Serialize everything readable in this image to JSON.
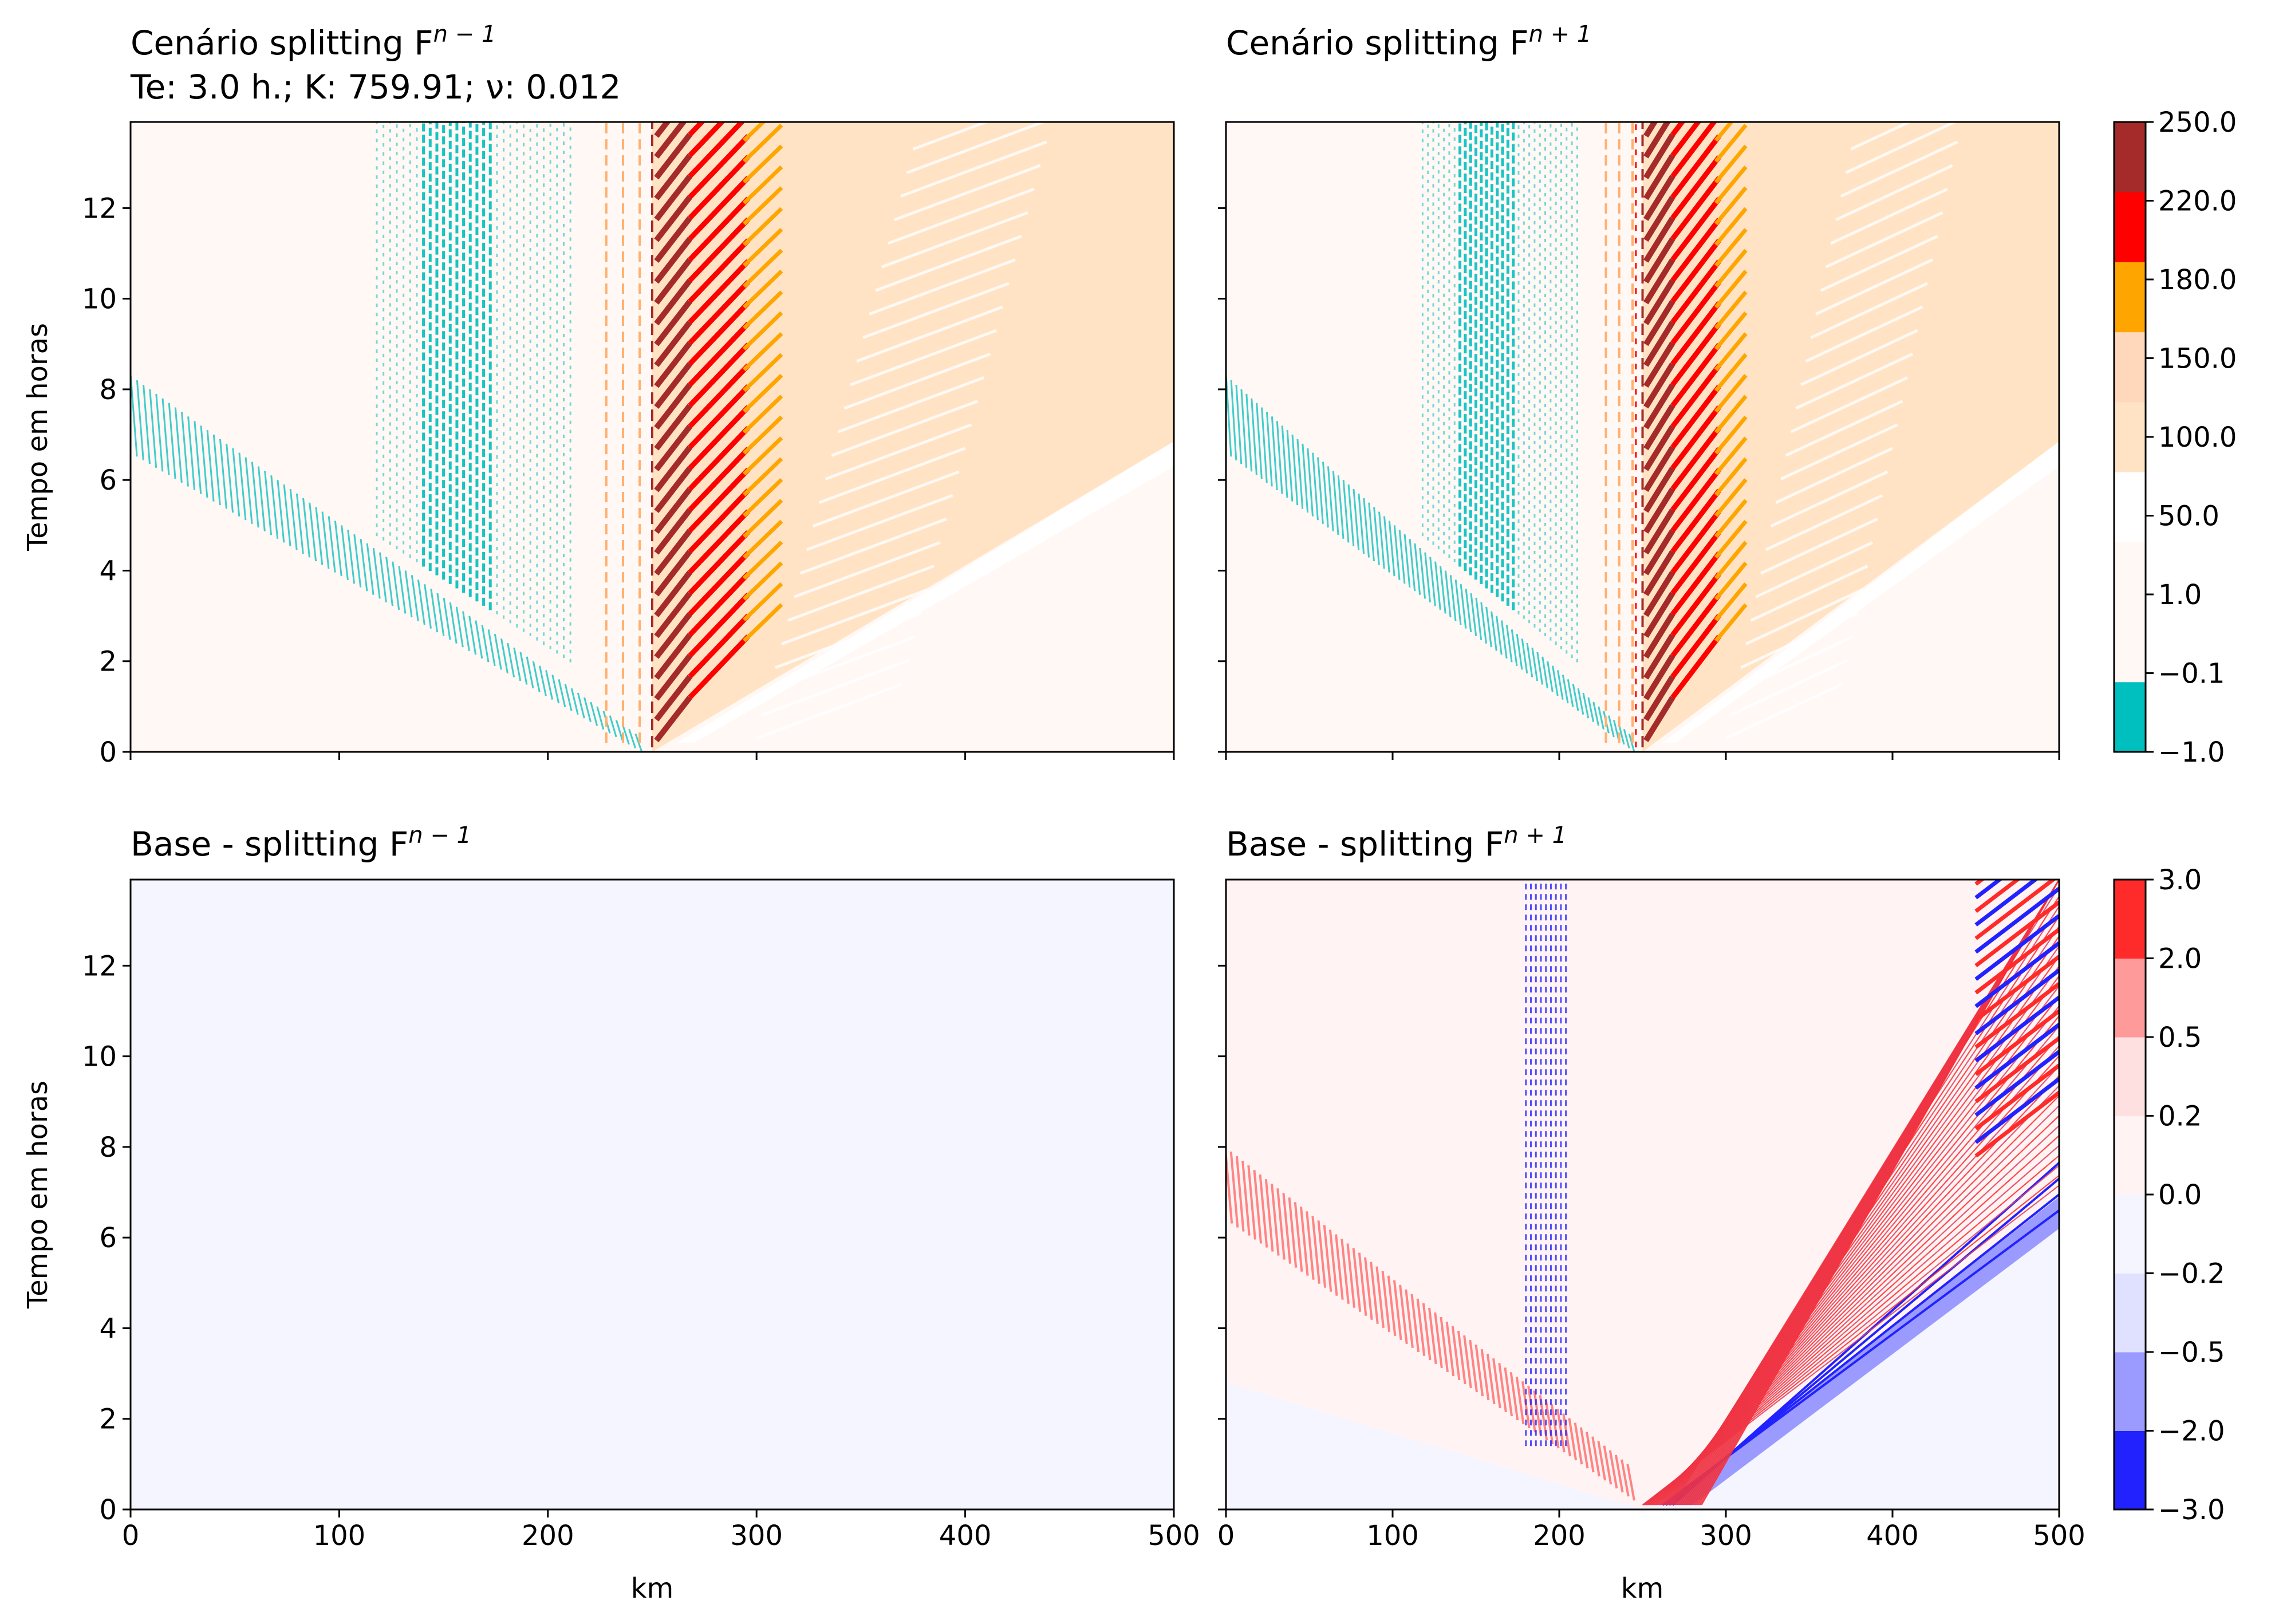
{
  "colors": {
    "teal": "#00bfbf",
    "peach": "#ffe3c4",
    "orange": "#ffa500",
    "red": "#ff0000",
    "darkred": "#a52a2a",
    "paleblue": "#f5f5ff",
    "blue": "#0000ff"
  },
  "chart_data": [
    {
      "type": "heatmap",
      "panel": "top-left",
      "title_line1": "Cenário splitting F",
      "title_sup": "n − 1",
      "title_line2": "Te: 3.0 h.; K: 759.91; ν: 0.012",
      "xlabel": "",
      "ylabel": "Tempo em horas",
      "xlim": [
        0,
        500
      ],
      "ylim": [
        0,
        13.9
      ],
      "xticks": [
        0,
        100,
        200,
        300,
        400,
        500
      ],
      "yticks": [
        "0",
        "2",
        "4",
        "6",
        "8",
        "10",
        "12"
      ],
      "show_xticklabels": false,
      "colorbar": "top"
    },
    {
      "type": "heatmap",
      "panel": "top-right",
      "title_line1": "Cenário splitting F",
      "title_sup": "n + 1",
      "xlabel": "",
      "ylabel": "",
      "xlim": [
        0,
        500
      ],
      "ylim": [
        0,
        13.9
      ],
      "colorbar": "top"
    },
    {
      "type": "heatmap",
      "panel": "bottom-left",
      "title_line1": "Base - splitting F",
      "title_sup": "n − 1",
      "xlabel": "km",
      "ylabel": "Tempo em horas",
      "xlim": [
        0,
        500
      ],
      "ylim": [
        0,
        13.9
      ],
      "xticks": [
        "0",
        "100",
        "200",
        "300",
        "400",
        "500"
      ],
      "yticks": [
        "0",
        "2",
        "4",
        "6",
        "8",
        "10",
        "12"
      ],
      "colorbar": "bottom"
    },
    {
      "type": "heatmap",
      "panel": "bottom-right",
      "title_line1": "Base - splitting F",
      "title_sup": "n + 1",
      "xlabel": "km",
      "ylabel": "",
      "xlim": [
        0,
        500
      ],
      "ylim": [
        0,
        13.9
      ],
      "xticks": [
        "0",
        "100",
        "200",
        "300",
        "400",
        "500"
      ],
      "colorbar": "bottom"
    }
  ],
  "colorbar_top": {
    "levels": [
      "−1.0",
      "−0.1",
      "1.0",
      "50.0",
      "100.0",
      "150.0",
      "180.0",
      "220.0",
      "250.0"
    ],
    "colors": [
      "#00bfbf",
      "#fff8f5",
      "#fff8f5",
      "#ffffff",
      "#ffe3c4",
      "#ffd8bc",
      "#ffa500",
      "#ff0000",
      "#a52a2a"
    ]
  },
  "colorbar_bottom": {
    "levels": [
      "−3.0",
      "−2.0",
      "−0.5",
      "−0.2",
      "0.0",
      "0.2",
      "0.5",
      "2.0",
      "3.0"
    ],
    "colors": [
      "#2222ff",
      "#9a9aff",
      "#e0e0ff",
      "#f5f5ff",
      "#fff3f3",
      "#ffe0e0",
      "#ff9a9a",
      "#ff2a2a"
    ]
  }
}
